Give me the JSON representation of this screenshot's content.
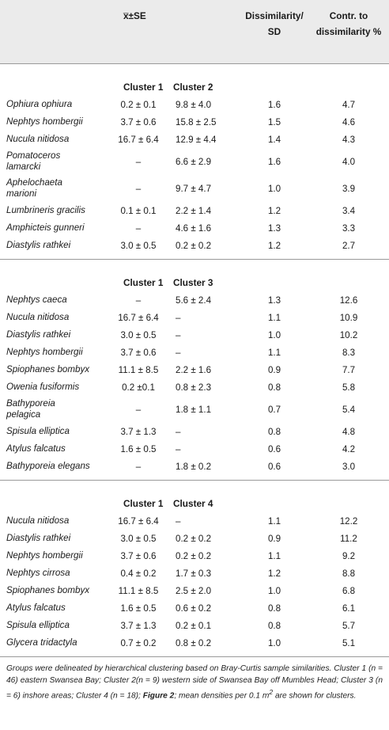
{
  "header": {
    "mean_symbol": "x̅±SE",
    "dissimilarity_sd": [
      "Dissimilarity/",
      "SD"
    ],
    "contribution": [
      "Contr. to",
      "dissimilarity %"
    ]
  },
  "sections": [
    {
      "cluster_a": "Cluster 1",
      "cluster_b": "Cluster 2",
      "rows": [
        {
          "species": "Ophiura ophiura",
          "mean_a": "0.2 ± 0.1",
          "mean_b": "9.8 ± 4.0",
          "dis_sd": "1.6",
          "contr": "4.7"
        },
        {
          "species": "Nephtys hombergii",
          "mean_a": "3.7 ± 0.6",
          "mean_b": "15.8 ± 2.5",
          "dis_sd": "1.5",
          "contr": "4.6"
        },
        {
          "species": "Nucula nitidosa",
          "mean_a": "16.7 ± 6.4",
          "mean_b": "12.9 ± 4.4",
          "dis_sd": "1.4",
          "contr": "4.3"
        },
        {
          "species_lines": [
            "Pomatoceros",
            "lamarcki"
          ],
          "mean_a": "–",
          "mean_b": "6.6 ± 2.9",
          "dis_sd": "1.6",
          "contr": "4.0"
        },
        {
          "species_lines": [
            "Aphelochaeta",
            "marioni"
          ],
          "mean_a": "–",
          "mean_b": "9.7 ± 4.7",
          "dis_sd": "1.0",
          "contr": "3.9"
        },
        {
          "species": "Lumbrineris gracilis",
          "mean_a": "0.1 ± 0.1",
          "mean_b": "2.2 ± 1.4",
          "dis_sd": "1.2",
          "contr": "3.4"
        },
        {
          "species": "Amphicteis gunneri",
          "mean_a": "–",
          "mean_b": "4.6 ± 1.6",
          "dis_sd": "1.3",
          "contr": "3.3"
        },
        {
          "species": "Diastylis rathkei",
          "mean_a": "3.0 ± 0.5",
          "mean_b": "0.2 ± 0.2",
          "dis_sd": "1.2",
          "contr": "2.7"
        }
      ]
    },
    {
      "cluster_a": "Cluster 1",
      "cluster_b": "Cluster 3",
      "rows": [
        {
          "species": "Nephtys caeca",
          "mean_a": "–",
          "mean_b": "5.6 ± 2.4",
          "dis_sd": "1.3",
          "contr": "12.6"
        },
        {
          "species": "Nucula nitidosa",
          "mean_a": "16.7 ± 6.4",
          "mean_b": "–",
          "dis_sd": "1.1",
          "contr": "10.9"
        },
        {
          "species": "Diastylis rathkei",
          "mean_a": "3.0 ± 0.5",
          "mean_b": "–",
          "dis_sd": "1.0",
          "contr": "10.2"
        },
        {
          "species": "Nephtys hombergii",
          "mean_a": "3.7 ± 0.6",
          "mean_b": "–",
          "dis_sd": "1.1",
          "contr": "8.3"
        },
        {
          "species": "Spiophanes bombyx",
          "mean_a": "11.1 ± 8.5",
          "mean_b": "2.2 ± 1.6",
          "dis_sd": "0.9",
          "contr": "7.7"
        },
        {
          "species": "Owenia fusiformis",
          "mean_a": "0.2 ±0.1",
          "mean_b": "0.8 ± 2.3",
          "dis_sd": "0.8",
          "contr": "5.8"
        },
        {
          "species_lines": [
            "Bathyporeia",
            "pelagica"
          ],
          "mean_a": "–",
          "mean_b": "1.8 ± 1.1",
          "dis_sd": "0.7",
          "contr": "5.4"
        },
        {
          "species": "Spisula elliptica",
          "mean_a": "3.7 ± 1.3",
          "mean_b": "–",
          "dis_sd": "0.8",
          "contr": "4.8"
        },
        {
          "species": "Atylus falcatus",
          "mean_a": "1.6 ± 0.5",
          "mean_b": "–",
          "dis_sd": "0.6",
          "contr": "4.2"
        },
        {
          "species": "Bathyporeia elegans",
          "mean_a": "–",
          "mean_b": "1.8 ± 0.2",
          "dis_sd": "0.6",
          "contr": "3.0"
        }
      ]
    },
    {
      "cluster_a": "Cluster 1",
      "cluster_b": "Cluster 4",
      "rows": [
        {
          "species": "Nucula nitidosa",
          "mean_a": "16.7 ± 6.4",
          "mean_b": "–",
          "dis_sd": "1.1",
          "contr": "12.2"
        },
        {
          "species": "Diastylis rathkei",
          "mean_a": "3.0 ± 0.5",
          "mean_b": "0.2 ± 0.2",
          "dis_sd": "0.9",
          "contr": "11.2"
        },
        {
          "species": "Nephtys hombergii",
          "mean_a": "3.7 ± 0.6",
          "mean_b": "0.2 ± 0.2",
          "dis_sd": "1.1",
          "contr": "9.2"
        },
        {
          "species": "Nephtys cirrosa",
          "mean_a": "0.4 ± 0.2",
          "mean_b": "1.7 ± 0.3",
          "dis_sd": "1.2",
          "contr": "8.8"
        },
        {
          "species": "Spiophanes bombyx",
          "mean_a": "11.1 ± 8.5",
          "mean_b": "2.5 ± 2.0",
          "dis_sd": "1.0",
          "contr": "6.8"
        },
        {
          "species": "Atylus falcatus",
          "mean_a": "1.6 ± 0.5",
          "mean_b": "0.6 ± 0.2",
          "dis_sd": "0.8",
          "contr": "6.1"
        },
        {
          "species": "Spisula elliptica",
          "mean_a": "3.7 ± 1.3",
          "mean_b": "0.2 ± 0.1",
          "dis_sd": "0.8",
          "contr": "5.7"
        },
        {
          "species": "Glycera tridactyla",
          "mean_a": "0.7 ± 0.2",
          "mean_b": "0.8 ± 0.2",
          "dis_sd": "1.0",
          "contr": "5.1"
        }
      ]
    }
  ],
  "footnote": {
    "text_1": "Groups were delineated by hierarchical clustering based on Bray-Curtis sample similarities. Cluster 1 (n = 46) eastern Swansea Bay; Cluster 2(n = 9) western side of Swansea Bay off Mumbles Head; Cluster 3 (n = 6) inshore areas; Cluster 4 (n = 18); ",
    "figure_ref": "Figure 2",
    "text_2": "; mean densities per 0.1 m",
    "superscript": "2",
    "text_3": " are shown for clusters."
  }
}
